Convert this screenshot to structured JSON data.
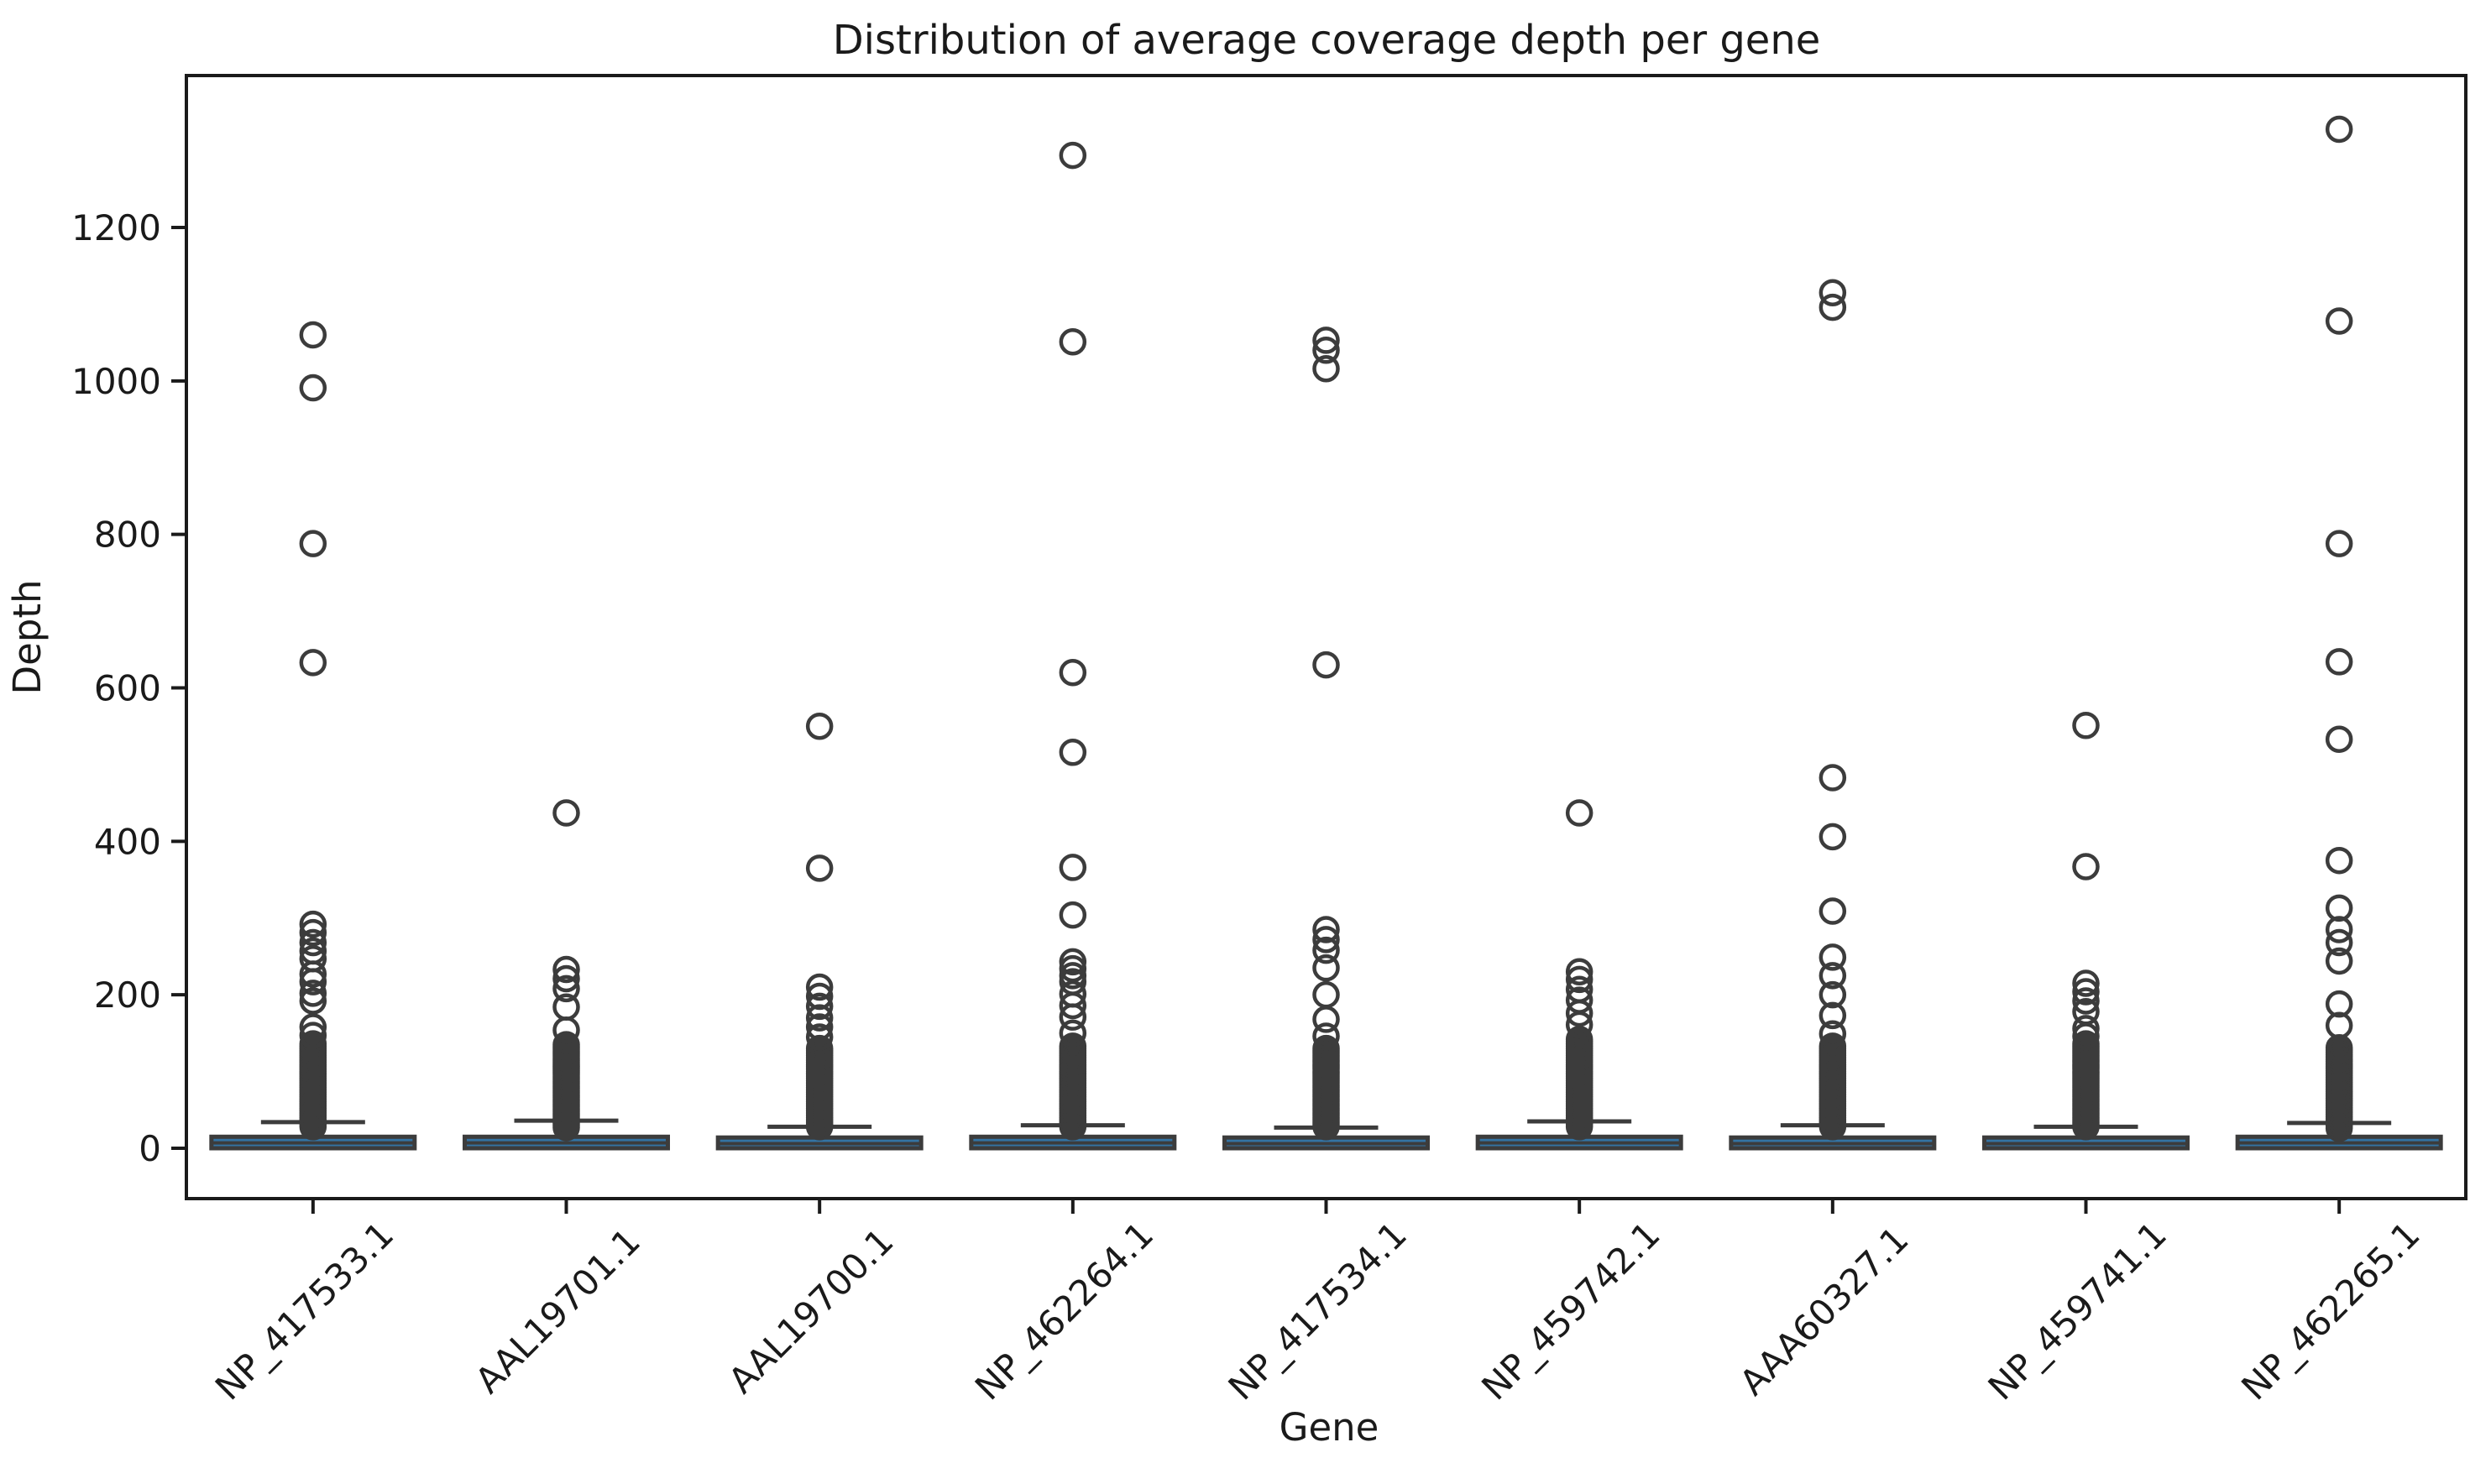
{
  "figure": {
    "title": "Distribution of average coverage depth per gene",
    "xlabel": "Gene",
    "ylabel": "Depth"
  },
  "colors": {
    "background": "#ffffff",
    "box_fill": "#3373a3",
    "box_edge": "#3c3c3c",
    "whisker": "#3c3c3c",
    "outlier_edge": "#3c3c3c",
    "spine": "#1a1a1a",
    "text": "#1a1a1a"
  },
  "chart_data": {
    "type": "box",
    "title": "Distribution of average coverage depth per gene",
    "xlabel": "Gene",
    "ylabel": "Depth",
    "grid": false,
    "legend": null,
    "ylim": [
      -66,
      1398
    ],
    "yticks": [
      0,
      200,
      400,
      600,
      800,
      1000,
      1200
    ],
    "categories": [
      "NP_417533.1",
      "AAL19701.1",
      "AAL19700.1",
      "NP_462264.1",
      "NP_417534.1",
      "NP_459742.1",
      "AAA60327.1",
      "NP_459741.1",
      "NP_462265.1"
    ],
    "boxes": [
      {
        "gene": "NP_417533.1",
        "q1": 0,
        "median": 7,
        "q3": 15,
        "whisker_low": 0,
        "whisker_high": 34,
        "outliers": [
          1060,
          991,
          788,
          633,
          292,
          281,
          268,
          257,
          247,
          227,
          217,
          202,
          192,
          158,
          147
        ],
        "outlier_cluster": {
          "top": 138,
          "bottom": 28,
          "step": 3
        }
      },
      {
        "gene": "AAL19701.1",
        "q1": 0,
        "median": 7,
        "q3": 15,
        "whisker_low": 0,
        "whisker_high": 36,
        "outliers": [
          437,
          233,
          221,
          208,
          184,
          154
        ],
        "outlier_cluster": {
          "top": 137,
          "bottom": 27,
          "step": 3
        }
      },
      {
        "gene": "AAL19700.1",
        "q1": 0,
        "median": 6,
        "q3": 14,
        "whisker_low": 0,
        "whisker_high": 28,
        "outliers": [
          550,
          365,
          210,
          198,
          185,
          170,
          158,
          145
        ],
        "outlier_cluster": {
          "top": 132,
          "bottom": 28,
          "step": 3
        }
      },
      {
        "gene": "NP_462264.1",
        "q1": 0,
        "median": 7,
        "q3": 15,
        "whisker_low": 0,
        "whisker_high": 30,
        "outliers": [
          1294,
          1051,
          620,
          516,
          366,
          304,
          243,
          234,
          225,
          217,
          201,
          186,
          171,
          150
        ],
        "outlier_cluster": {
          "top": 135,
          "bottom": 28,
          "step": 3
        }
      },
      {
        "gene": "NP_417534.1",
        "q1": 0,
        "median": 6,
        "q3": 14,
        "whisker_low": 0,
        "whisker_high": 27,
        "outliers": [
          1053,
          1040,
          1016,
          630,
          285,
          272,
          258,
          235,
          200,
          168,
          146
        ],
        "outlier_cluster": {
          "top": 130,
          "bottom": 28,
          "step": 3
        }
      },
      {
        "gene": "NP_459742.1",
        "q1": 0,
        "median": 7,
        "q3": 15,
        "whisker_low": 0,
        "whisker_high": 35,
        "outliers": [
          437,
          230,
          220,
          207,
          193,
          176,
          161
        ],
        "outlier_cluster": {
          "top": 142,
          "bottom": 28,
          "step": 3
        }
      },
      {
        "gene": "AAA60327.1",
        "q1": 0,
        "median": 6,
        "q3": 14,
        "whisker_low": 0,
        "whisker_high": 30,
        "outliers": [
          1115,
          1096,
          483,
          406,
          309,
          249,
          225,
          200,
          173,
          149
        ],
        "outlier_cluster": {
          "top": 134,
          "bottom": 28,
          "step": 3
        }
      },
      {
        "gene": "NP_459741.1",
        "q1": 0,
        "median": 6,
        "q3": 14,
        "whisker_low": 0,
        "whisker_high": 28,
        "outliers": [
          551,
          367,
          215,
          204,
          192,
          178,
          156,
          146
        ],
        "outlier_cluster": {
          "top": 136,
          "bottom": 28,
          "step": 3
        }
      },
      {
        "gene": "NP_462265.1",
        "q1": 0,
        "median": 7,
        "q3": 15,
        "whisker_low": 0,
        "whisker_high": 33,
        "outliers": [
          1328,
          1078,
          788,
          634,
          533,
          375,
          313,
          285,
          268,
          244,
          188,
          160
        ],
        "outlier_cluster": {
          "top": 132,
          "bottom": 26,
          "step": 3
        }
      }
    ]
  }
}
